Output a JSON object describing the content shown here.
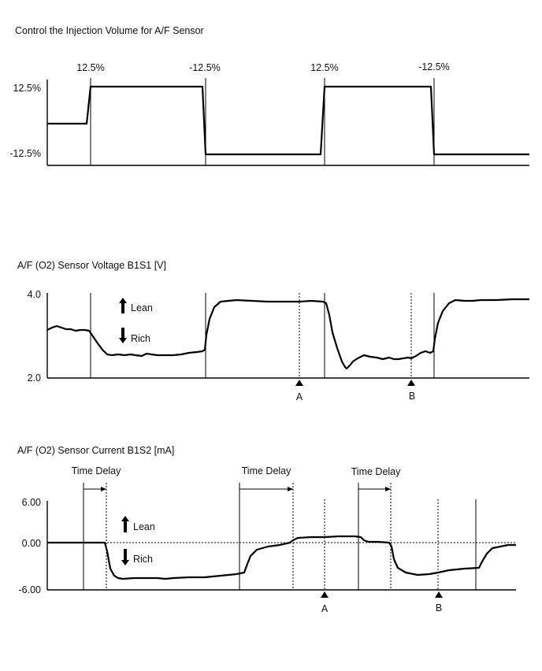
{
  "panel1": {
    "title": "Control the Injection Volume for A/F Sensor",
    "y_labels": [
      "12.5%",
      "-12.5%"
    ],
    "top_labels": [
      "12.5%",
      "-12.5%",
      "12.5%",
      "-12.5%"
    ]
  },
  "panel2": {
    "title": "A/F (O2) Sensor Voltage B1S1 [V]",
    "y_labels": [
      "4.0",
      "2.0"
    ],
    "lean_label": "Lean",
    "rich_label": "Rich",
    "markers": [
      "A",
      "B"
    ]
  },
  "panel3": {
    "title": "A/F (O2) Sensor Current B1S2 [mA]",
    "y_labels": [
      "6.00",
      "0.00",
      "-6.00"
    ],
    "time_delay_labels": [
      "Time Delay",
      "Time Delay",
      "Time Delay"
    ],
    "lean_label": "Lean",
    "rich_label": "Rich",
    "markers": [
      "A",
      "B"
    ]
  }
}
